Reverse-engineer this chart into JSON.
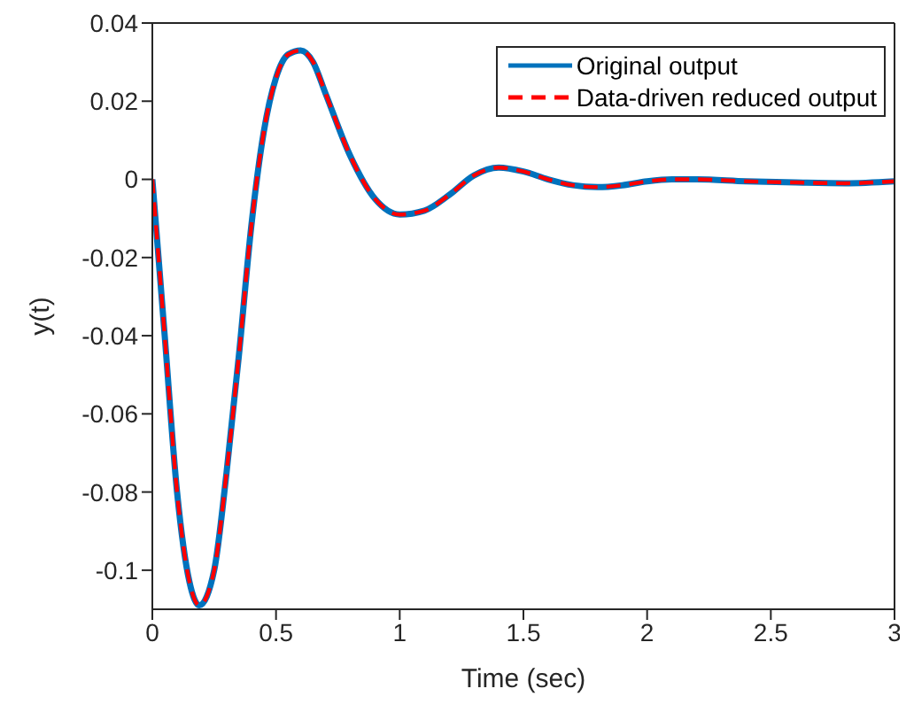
{
  "chart_data": {
    "type": "line",
    "xlabel": "Time (sec)",
    "ylabel": "y(t)",
    "x": [
      0,
      0.05,
      0.1,
      0.15,
      0.19,
      0.25,
      0.3,
      0.35,
      0.4,
      0.45,
      0.5,
      0.55,
      0.6,
      0.65,
      0.7,
      0.8,
      0.9,
      1.0,
      1.1,
      1.2,
      1.3,
      1.4,
      1.5,
      1.6,
      1.7,
      1.8,
      1.9,
      2.0,
      2.1,
      2.2,
      2.4,
      2.6,
      2.8,
      3.0
    ],
    "series": [
      {
        "name": "Original output",
        "color": "#0072bd",
        "line_style": "solid",
        "values": [
          0,
          -0.04,
          -0.08,
          -0.103,
          -0.109,
          -0.1,
          -0.075,
          -0.045,
          -0.012,
          0.012,
          0.026,
          0.032,
          0.033,
          0.03,
          0.022,
          0.006,
          -0.005,
          -0.009,
          -0.008,
          -0.004,
          0.001,
          0.003,
          0.002,
          0,
          -0.0015,
          -0.002,
          -0.0015,
          -0.0005,
          0,
          0,
          -0.0005,
          -0.0008,
          -0.001,
          -0.0005
        ]
      },
      {
        "name": "Data-driven reduced output",
        "color": "#ff0000",
        "line_style": "dashed",
        "values": [
          0,
          -0.04,
          -0.08,
          -0.103,
          -0.109,
          -0.1,
          -0.075,
          -0.045,
          -0.012,
          0.012,
          0.026,
          0.032,
          0.033,
          0.03,
          0.022,
          0.006,
          -0.005,
          -0.009,
          -0.008,
          -0.004,
          0.001,
          0.003,
          0.002,
          0,
          -0.0015,
          -0.002,
          -0.0015,
          -0.0005,
          0,
          0,
          -0.0005,
          -0.0008,
          -0.001,
          -0.0005
        ]
      }
    ],
    "xlim": [
      0,
      3
    ],
    "xticks": [
      0,
      0.5,
      1,
      1.5,
      2,
      2.5,
      3
    ],
    "ylim": [
      -0.11,
      0.04
    ],
    "yticks": [
      -0.1,
      -0.08,
      -0.06,
      -0.04,
      -0.02,
      0,
      0.02,
      0.04
    ],
    "grid": false,
    "legend": "top right",
    "marker": "none"
  }
}
